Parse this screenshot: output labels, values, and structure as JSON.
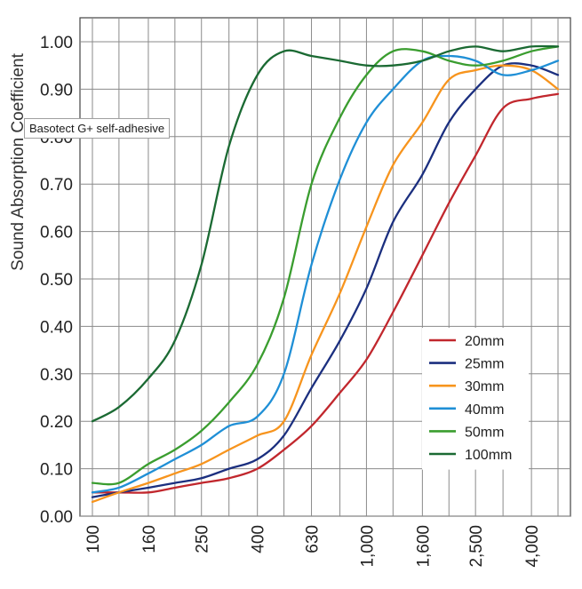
{
  "tooltip": {
    "text": "Basotect G+ self-adhesive"
  },
  "chart_data": {
    "type": "line",
    "title": "",
    "xlabel": "",
    "ylabel": "Sound Absorption Coefficient",
    "x_scale": "log",
    "x": [
      100,
      125,
      160,
      200,
      250,
      315,
      400,
      500,
      630,
      800,
      1000,
      1250,
      1600,
      2000,
      2500,
      3150,
      4000,
      5000
    ],
    "x_tick_labels": [
      "100",
      "160",
      "250",
      "400",
      "630",
      "1,000",
      "1,600",
      "2,500",
      "4,000"
    ],
    "x_tick_values": [
      100,
      160,
      250,
      400,
      630,
      1000,
      1600,
      2500,
      4000
    ],
    "ylim": [
      0,
      1.0
    ],
    "y_ticks": [
      "0.00",
      "0.10",
      "0.20",
      "0.30",
      "0.40",
      "0.50",
      "0.60",
      "0.70",
      "0.80",
      "0.90",
      "1.00"
    ],
    "grid": true,
    "legend_position": "lower-right",
    "series": [
      {
        "name": "20mm",
        "color": "#c1272d",
        "values": [
          0.05,
          0.05,
          0.05,
          0.06,
          0.07,
          0.08,
          0.1,
          0.14,
          0.19,
          0.26,
          0.33,
          0.43,
          0.55,
          0.66,
          0.76,
          0.86,
          0.88,
          0.89
        ]
      },
      {
        "name": "25mm",
        "color": "#1b2f7f",
        "values": [
          0.04,
          0.05,
          0.06,
          0.07,
          0.08,
          0.1,
          0.12,
          0.17,
          0.27,
          0.37,
          0.48,
          0.62,
          0.72,
          0.83,
          0.9,
          0.95,
          0.95,
          0.93
        ]
      },
      {
        "name": "30mm",
        "color": "#f7941d",
        "values": [
          0.03,
          0.05,
          0.07,
          0.09,
          0.11,
          0.14,
          0.17,
          0.2,
          0.34,
          0.47,
          0.61,
          0.74,
          0.83,
          0.92,
          0.94,
          0.95,
          0.94,
          0.9
        ]
      },
      {
        "name": "40mm",
        "color": "#1f8fd6",
        "values": [
          0.05,
          0.06,
          0.09,
          0.12,
          0.15,
          0.19,
          0.21,
          0.3,
          0.53,
          0.71,
          0.83,
          0.9,
          0.96,
          0.97,
          0.96,
          0.93,
          0.94,
          0.96
        ]
      },
      {
        "name": "50mm",
        "color": "#3a9d2f",
        "values": [
          0.07,
          0.07,
          0.11,
          0.14,
          0.18,
          0.24,
          0.32,
          0.46,
          0.7,
          0.84,
          0.93,
          0.98,
          0.98,
          0.96,
          0.95,
          0.96,
          0.98,
          0.99
        ]
      },
      {
        "name": "100mm",
        "color": "#1b6a33",
        "values": [
          0.2,
          0.23,
          0.29,
          0.37,
          0.53,
          0.78,
          0.93,
          0.98,
          0.97,
          0.96,
          0.95,
          0.95,
          0.96,
          0.98,
          0.99,
          0.98,
          0.99,
          0.99
        ]
      }
    ]
  }
}
